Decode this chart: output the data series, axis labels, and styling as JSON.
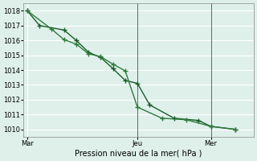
{
  "bg_color": "#dff0eb",
  "grid_color": "#ffffff",
  "line_color1": "#1a5c2a",
  "line_color2": "#2d7a3a",
  "xlabel": "Pression niveau de la mer( hPa )",
  "ylim": [
    1009.5,
    1018.5
  ],
  "yticks": [
    1010,
    1011,
    1012,
    1013,
    1014,
    1015,
    1016,
    1017,
    1018
  ],
  "x_tick_labels": [
    "Mar",
    "Jeu",
    "Mer"
  ],
  "x_tick_positions": [
    0.0,
    9.0,
    15.0
  ],
  "xlim": [
    -0.3,
    18.5
  ],
  "series1_x": [
    0,
    1,
    3,
    4,
    5,
    6,
    7,
    8,
    9,
    10,
    12,
    14,
    15,
    17
  ],
  "series1_y": [
    1018.0,
    1017.0,
    1016.7,
    1016.0,
    1015.2,
    1014.85,
    1014.1,
    1013.3,
    1013.1,
    1011.65,
    1010.75,
    1010.6,
    1010.2,
    1010.0
  ],
  "series2_x": [
    0,
    2,
    3,
    4,
    5,
    6,
    7,
    8,
    9,
    11,
    13,
    15,
    17
  ],
  "series2_y": [
    1018.0,
    1016.75,
    1016.05,
    1015.75,
    1015.1,
    1014.9,
    1014.4,
    1013.95,
    1011.5,
    1010.75,
    1010.65,
    1010.2,
    1010.0
  ],
  "marker": "+",
  "marker_size": 4,
  "linewidth": 1.0,
  "vline_positions": [
    9.0,
    15.0
  ],
  "vline_color": "#3a7a5a",
  "vline_lw": 0.7,
  "spine_color": "#888888",
  "tick_labelsize": 6,
  "xlabel_fontsize": 7
}
